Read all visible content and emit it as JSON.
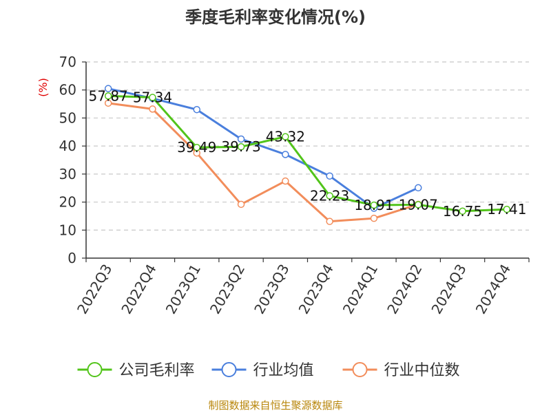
{
  "chart_data": {
    "type": "line",
    "title": "季度毛利率变化情况(%)",
    "ylabel": "(%)",
    "xlabel": "",
    "categories": [
      "2022Q3",
      "2022Q4",
      "2023Q1",
      "2023Q2",
      "2023Q3",
      "2023Q4",
      "2024Q1",
      "2024Q2",
      "2024Q3",
      "2024Q4"
    ],
    "ylim": [
      0,
      70
    ],
    "yticks": [
      0,
      10,
      20,
      30,
      40,
      50,
      60,
      70
    ],
    "grid": true,
    "legend_position": "bottom",
    "series": [
      {
        "name": "公司毛利率",
        "color": "#52c41a",
        "values": [
          57.87,
          57.34,
          39.49,
          39.73,
          43.32,
          22.23,
          18.91,
          19.07,
          16.75,
          17.41
        ],
        "labels": [
          "57.87",
          "57.34",
          "39.49",
          "39.73",
          "43.32",
          "22.23",
          "18.91",
          "19.07",
          "16.75",
          "17.41"
        ]
      },
      {
        "name": "行业均值",
        "color": "#4a7fdd",
        "values": [
          60.5,
          57.0,
          53.0,
          42.5,
          37.0,
          29.3,
          17.8,
          25.1,
          null,
          null
        ]
      },
      {
        "name": "行业中位数",
        "color": "#f28d5b",
        "values": [
          55.3,
          53.2,
          37.5,
          19.2,
          27.5,
          13.1,
          14.2,
          19.2,
          null,
          null
        ]
      }
    ]
  },
  "footer": "制图数据来自恒生聚源数据库"
}
